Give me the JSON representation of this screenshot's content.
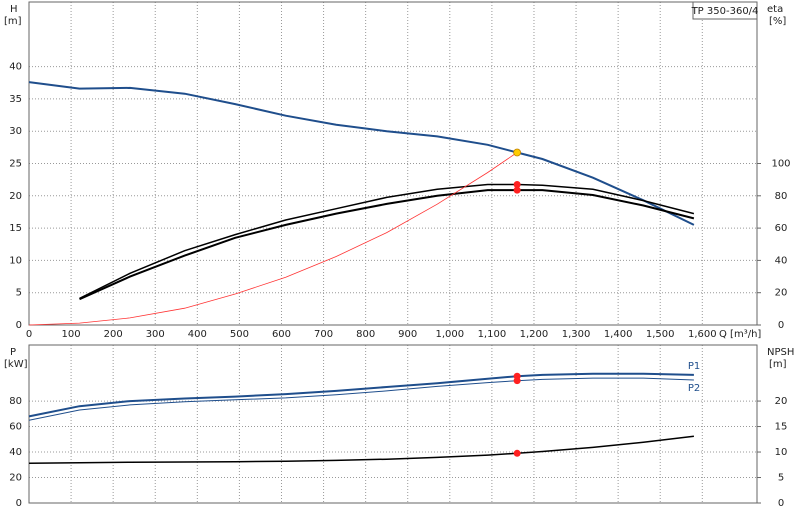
{
  "chart_data": [
    {
      "type": "line",
      "title": "TP 350-360/4",
      "x_label": "Q [m³/h]",
      "y_label": "H",
      "y_unit": "[m]",
      "y2_label": "eta",
      "y2_unit": "[%]",
      "xlim": [
        0,
        1730
      ],
      "ylim": [
        0,
        50
      ],
      "y2lim": [
        0,
        200
      ],
      "grid": true,
      "xtick_labels": true,
      "xticks": [
        0,
        100,
        200,
        300,
        400,
        500,
        600,
        700,
        800,
        900,
        {
          "value": 1000,
          "label": "1,000"
        },
        {
          "value": 1100,
          "label": "1,100"
        },
        {
          "value": 1200,
          "label": "1,200"
        },
        {
          "value": 1300,
          "label": "1,300"
        },
        {
          "value": 1400,
          "label": "1,400"
        },
        {
          "value": 1500,
          "label": "1,500"
        },
        {
          "value": 1600,
          "label": "1,600"
        }
      ],
      "yticks": [
        0,
        5,
        10,
        15,
        20,
        25,
        30,
        35,
        40
      ],
      "y2ticks": [
        0,
        20,
        40,
        60,
        80,
        100
      ],
      "x": [
        0,
        120,
        240,
        370,
        490,
        610,
        730,
        850,
        970,
        1090,
        1160,
        1220,
        1340,
        1460,
        1580
      ],
      "series": [
        {
          "color": "#1f4e8c",
          "width": 2,
          "values": [
            37.6,
            36.6,
            36.7,
            35.8,
            34.2,
            32.4,
            31.0,
            30.0,
            29.2,
            27.9,
            26.7,
            25.7,
            22.8,
            19.3,
            15.5
          ]
        },
        {
          "color": "#000000",
          "width": 1.5,
          "axis": "y2",
          "values": [
            null,
            16.5,
            32,
            46,
            56,
            65,
            72,
            79,
            84,
            87,
            87,
            86.5,
            84,
            77,
            69
          ]
        },
        {
          "color": "#000000",
          "width": 2,
          "axis": "y2",
          "values": [
            null,
            16,
            30,
            43,
            54,
            62,
            69,
            75,
            80,
            83.5,
            83.5,
            83.5,
            80.5,
            74,
            66
          ]
        },
        {
          "color": "#ff3333",
          "width": 0.8,
          "values": [
            0,
            0.3,
            1.1,
            2.6,
            4.8,
            7.4,
            10.6,
            14.3,
            18.7,
            23.6,
            26.7,
            null,
            null,
            null,
            null
          ]
        }
      ],
      "markers": [
        {
          "x": 1160,
          "y": 26.7,
          "color": "#ffcc00"
        },
        {
          "x": 1160,
          "y": 87,
          "axis": "y2",
          "color": "#ff2020"
        },
        {
          "x": 1160,
          "y": 83.5,
          "axis": "y2",
          "color": "#ff2020"
        }
      ]
    },
    {
      "type": "line",
      "y_label": "P",
      "y_unit": "[kW]",
      "y2_label": "NPSH",
      "y2_unit": "[m]",
      "xlim": [
        0,
        1730
      ],
      "ylim": [
        0,
        124
      ],
      "y2lim": [
        0,
        31
      ],
      "grid": true,
      "xtick_labels": false,
      "xticks": [
        100,
        200,
        300,
        400,
        500,
        600,
        700,
        800,
        900,
        1000,
        1100,
        1200,
        1300,
        1400,
        1500,
        1600
      ],
      "yticks": [
        0,
        20,
        40,
        60,
        80
      ],
      "y2ticks": [
        0,
        5,
        10,
        15,
        20
      ],
      "x": [
        0,
        120,
        240,
        370,
        490,
        610,
        730,
        850,
        970,
        1090,
        1160,
        1220,
        1340,
        1460,
        1580
      ],
      "series": [
        {
          "name": "P1",
          "color": "#1f4e8c",
          "width": 2,
          "values": [
            68,
            76,
            80,
            82,
            83.5,
            85.5,
            88,
            91,
            94,
            97.5,
            99.5,
            100.5,
            101.5,
            101.5,
            100.5
          ]
        },
        {
          "name": "P2",
          "color": "#1f4e8c",
          "width": 1,
          "values": [
            65,
            73,
            77,
            79.5,
            81,
            82.5,
            85,
            88,
            91.5,
            94.5,
            96,
            97,
            98,
            98,
            96.5
          ]
        },
        {
          "color": "#000000",
          "width": 1.5,
          "axis": "y2",
          "values": [
            7.8,
            7.9,
            8.0,
            8.05,
            8.1,
            8.2,
            8.35,
            8.6,
            8.95,
            9.4,
            9.75,
            10.1,
            10.9,
            11.9,
            13.1
          ]
        }
      ],
      "markers": [
        {
          "x": 1160,
          "y": 99.5,
          "color": "#ff2020"
        },
        {
          "x": 1160,
          "y": 96,
          "color": "#ff2020"
        },
        {
          "x": 1160,
          "y": 9.75,
          "axis": "y2",
          "color": "#ff2020"
        }
      ]
    }
  ]
}
